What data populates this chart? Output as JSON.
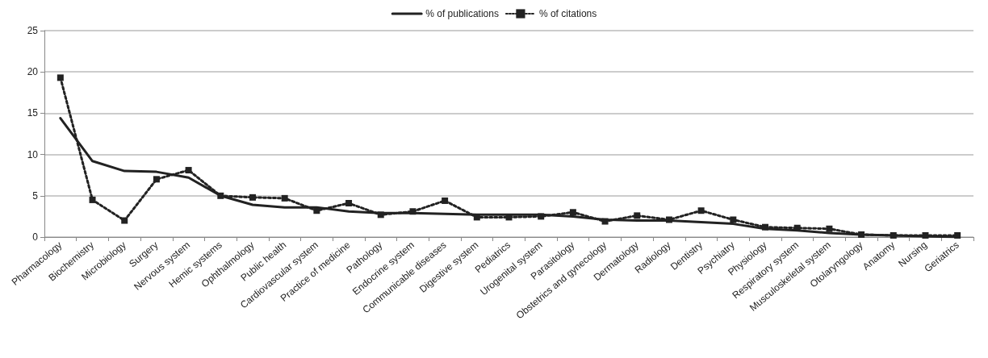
{
  "chart_data": {
    "type": "line",
    "categories": [
      "Pharmacology",
      "Biochemistry",
      "Microbiology",
      "Surgery",
      "Nervous system",
      "Hemic systems",
      "Ophthalmology",
      "Public health",
      "Cardiovascular system",
      "Practice of medicine",
      "Pathology",
      "Endocrine system",
      "Communicable diseases",
      "Digestive system",
      "Pediatrics",
      "Urogenital system",
      "Parasitology",
      "Obstetrics and gynecology",
      "Dermatology",
      "Radiology",
      "Dentistry",
      "Psychiatry",
      "Physiology",
      "Respiratory system",
      "Musculoskeletal system",
      "Otolaryngology",
      "Anatomy",
      "Nursing",
      "Geriatrics"
    ],
    "series": [
      {
        "name": "% of publications",
        "color": "#222222",
        "marker": "none",
        "line_style": "solid",
        "values": [
          14.4,
          9.2,
          8.0,
          7.9,
          7.2,
          5.0,
          3.9,
          3.6,
          3.6,
          3.1,
          2.9,
          2.9,
          2.8,
          2.7,
          2.7,
          2.7,
          2.5,
          2.1,
          2.0,
          2.0,
          1.8,
          1.6,
          1.0,
          0.8,
          0.5,
          0.3,
          0.2,
          0.1,
          0.0
        ]
      },
      {
        "name": "% of citations",
        "color": "#222222",
        "marker": "square",
        "line_style": "dotted",
        "values": [
          19.3,
          4.5,
          2.0,
          7.0,
          8.1,
          5.0,
          4.8,
          4.7,
          3.2,
          4.1,
          2.7,
          3.1,
          4.4,
          2.4,
          2.4,
          2.5,
          3.0,
          1.9,
          2.6,
          2.1,
          3.2,
          2.1,
          1.2,
          1.1,
          1.0,
          0.3,
          0.2,
          0.2,
          0.2
        ]
      }
    ],
    "ylim": [
      0,
      25
    ],
    "yticks": [
      0,
      5,
      10,
      15,
      20,
      25
    ],
    "grid": "y",
    "legend": "top"
  }
}
